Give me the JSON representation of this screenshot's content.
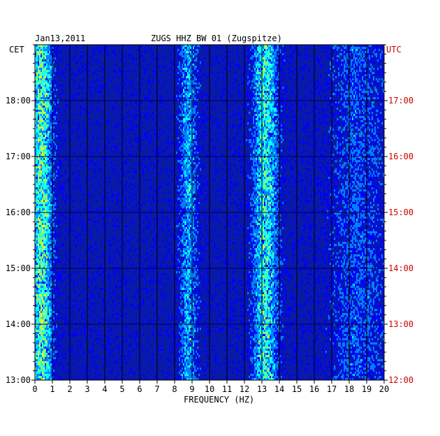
{
  "chart_data": {
    "type": "heatmap",
    "date": "Jan13,2011",
    "station": "ZUGS HHZ BW 01 (Zugspitze)",
    "xlabel": "FREQUENCY (HZ)",
    "xlim": [
      0,
      20
    ],
    "x_ticks": [
      "0",
      "1",
      "2",
      "3",
      "4",
      "5",
      "6",
      "7",
      "8",
      "9",
      "10",
      "11",
      "12",
      "13",
      "14",
      "15",
      "16",
      "17",
      "18",
      "19",
      "20"
    ],
    "left_axis_label": "CET",
    "right_axis_label": "UTC",
    "left_ticks": [
      {
        "label": "18:00",
        "hours": 18
      },
      {
        "label": "17:00",
        "hours": 17
      },
      {
        "label": "16:00",
        "hours": 16
      },
      {
        "label": "15:00",
        "hours": 15
      },
      {
        "label": "14:00",
        "hours": 14
      },
      {
        "label": "13:00",
        "hours": 13
      }
    ],
    "right_ticks": [
      {
        "label": "17:00",
        "hours": 17
      },
      {
        "label": "16:00",
        "hours": 16
      },
      {
        "label": "15:00",
        "hours": 15
      },
      {
        "label": "14:00",
        "hours": 14
      },
      {
        "label": "13:00",
        "hours": 13
      },
      {
        "label": "12:00",
        "hours": 12
      }
    ],
    "ylim_cet_hours": [
      13,
      19
    ],
    "background_color": "#0a1aa8",
    "colormap": [
      "#000080",
      "#0000ff",
      "#0080ff",
      "#00ffff",
      "#80ff80",
      "#ffff00",
      "#ff8000",
      "#ff0000"
    ],
    "energy_bands_hz": [
      {
        "center": 0.4,
        "width": 0.6,
        "strength": 0.75
      },
      {
        "center": 8.8,
        "width": 0.5,
        "strength": 0.45
      },
      {
        "center": 13.2,
        "width": 0.7,
        "strength": 0.65
      },
      {
        "center": 18.5,
        "width": 1.5,
        "strength": 0.25
      }
    ],
    "label_color_left": "#000000",
    "label_color_right": "#cc0000"
  }
}
